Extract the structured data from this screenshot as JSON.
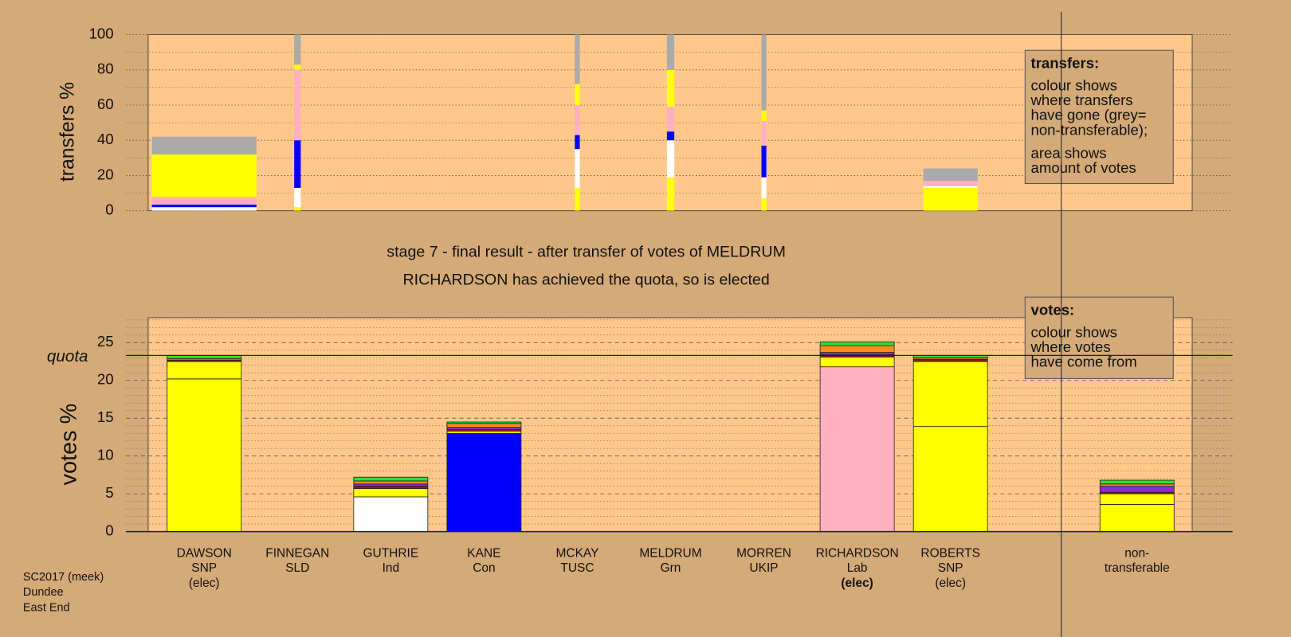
{
  "chart_data": [
    {
      "type": "stacked_bar",
      "ylabel": "transfers %",
      "ylim": [
        0,
        100
      ],
      "yticks": [
        0,
        20,
        40,
        60,
        80,
        100
      ],
      "minor_yticks": [
        10,
        30,
        50,
        70,
        90
      ],
      "grid": true,
      "amounts": [
        12.7,
        0.8,
        null,
        null,
        0.6,
        0.9,
        0.6,
        null,
        6.6,
        null
      ],
      "series": [
        {
          "color": "#ffff00",
          "values": [
            0,
            2,
            null,
            null,
            13,
            19,
            7,
            null,
            13,
            null
          ]
        },
        {
          "color": "#ffffff",
          "values": [
            2,
            11,
            null,
            null,
            22,
            21,
            12,
            null,
            1,
            null
          ]
        },
        {
          "color": "#0000ff",
          "values": [
            1.5,
            27,
            null,
            null,
            8,
            5,
            18,
            null,
            0,
            null
          ]
        },
        {
          "color": "#ffb0c0",
          "values": [
            4.5,
            40,
            null,
            null,
            17,
            14,
            14,
            null,
            3,
            null
          ]
        },
        {
          "color": "#ffff00",
          "values": [
            24,
            3,
            null,
            null,
            12,
            21,
            6,
            null,
            0,
            null
          ]
        },
        {
          "color": "#aaaaaa",
          "values": [
            10,
            17,
            null,
            null,
            28,
            20,
            43,
            null,
            7,
            null
          ]
        }
      ],
      "notes": {
        "title": "transfers:",
        "paragraphs": [
          [
            "colour shows",
            "where transfers",
            "have gone (grey=",
            "non-transferable);"
          ],
          [
            "area shows",
            "amount of votes"
          ]
        ]
      }
    },
    {
      "type": "stacked_bar",
      "title": "stage 7 - final result - after transfer of votes of MELDRUM",
      "subtitle": "RICHARDSON has achieved the quota, so is elected",
      "ylabel": "votes %",
      "ylim": [
        0,
        28.3
      ],
      "yticks": [
        0,
        5,
        10,
        15,
        20,
        25
      ],
      "minor_yticks": [
        1,
        2,
        3,
        4,
        6,
        7,
        8,
        9,
        11,
        12,
        13,
        14,
        16,
        17,
        18,
        19,
        21,
        22,
        23,
        24,
        26,
        27,
        28
      ],
      "grid": true,
      "quota": 23.3,
      "quota_label": "quota",
      "categories": [
        [
          "DAWSON",
          "SNP",
          "(elec)"
        ],
        [
          "FINNEGAN",
          "SLD"
        ],
        [
          "GUTHRIE",
          "Ind"
        ],
        [
          "KANE",
          "Con"
        ],
        [
          "MCKAY",
          "TUSC"
        ],
        [
          "MELDRUM",
          "Grn"
        ],
        [
          "MORREN",
          "UKIP"
        ],
        [
          "RICHARDSON",
          "Lab",
          "(elec)"
        ],
        [
          "ROBERTS",
          "SNP",
          "(elec)"
        ],
        [
          "non-",
          "transferable"
        ]
      ],
      "series": [
        {
          "colors": [
            "#ffff00",
            "#ff8c1a",
            "#ffffff",
            "#0000ff",
            "#8b1a1a",
            "#33dd33",
            "#8a2be2",
            "#ffb0c0",
            "#ffff00",
            "#ffff00"
          ],
          "values": [
            20.2,
            0,
            4.6,
            13.0,
            0,
            0,
            0,
            21.8,
            13.9,
            0
          ]
        },
        {
          "color": "#ffff00",
          "values": [
            0,
            0,
            1.1,
            0.3,
            0,
            0,
            0,
            1.3,
            8.6,
            3.6
          ]
        },
        {
          "color": "#ffff00",
          "values": [
            2.3,
            0,
            0,
            0,
            0,
            0,
            0,
            0,
            0,
            1.4
          ]
        },
        {
          "color": "#8b1a1a",
          "values": [
            0.2,
            0,
            0.3,
            0.2,
            0,
            0,
            0,
            0.3,
            0.3,
            0.2
          ]
        },
        {
          "color": "#8a2be2",
          "values": [
            0,
            0,
            0.3,
            0.3,
            0,
            0,
            0,
            0.3,
            0,
            0.8
          ]
        },
        {
          "color": "#ff8c1a",
          "values": [
            0.2,
            0,
            0.4,
            0.5,
            0,
            0,
            0,
            0.9,
            0.2,
            0.3
          ]
        },
        {
          "color": "#33dd33",
          "values": [
            0.4,
            0,
            0.5,
            0.2,
            0,
            0,
            0,
            0.5,
            0.3,
            0.5
          ]
        }
      ],
      "notes": {
        "title": "votes:",
        "paragraphs": [
          [
            "colour shows",
            "where votes",
            "have come from"
          ]
        ]
      }
    }
  ],
  "footer": [
    "SC2017 (meek)",
    "Dundee",
    "East End"
  ]
}
